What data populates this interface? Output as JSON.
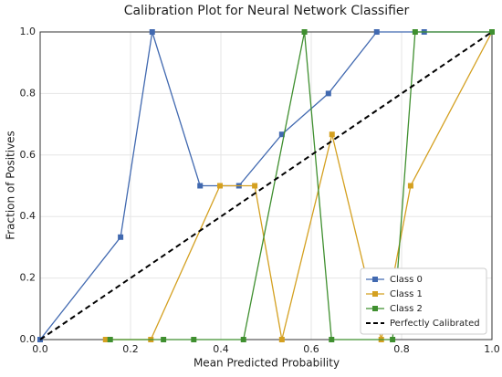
{
  "chart_data": {
    "type": "line",
    "title": "Calibration Plot for Neural Network Classifier",
    "xlabel": "Mean Predicted Probability",
    "ylabel": "Fraction of Positives",
    "xlim": [
      0,
      1
    ],
    "ylim": [
      0,
      1
    ],
    "xticks": [
      {
        "value": 0,
        "label": "0.0"
      },
      0.2,
      0.4,
      0.6,
      0.8,
      {
        "value": 1,
        "label": "1.0"
      }
    ],
    "yticks": [
      {
        "value": 0,
        "label": "0.0"
      },
      0.2,
      0.4,
      0.6,
      0.8,
      {
        "value": 1,
        "label": "1.0"
      }
    ],
    "grid": true,
    "legend": "lower right",
    "series": [
      {
        "name": "Class 0",
        "color": "#4169b0",
        "marker": "square",
        "x": [
          0,
          0.178,
          0.248,
          0.354,
          0.44,
          0.535,
          0.638,
          0.745,
          0.85,
          1.0
        ],
        "values": [
          0,
          0.333,
          1.0,
          0.5,
          0.5,
          0.667,
          0.8,
          1.0,
          1.0,
          1.0
        ]
      },
      {
        "name": "Class 1",
        "color": "#d4a020",
        "marker": "square",
        "x": [
          0.145,
          0.245,
          0.398,
          0.475,
          0.535,
          0.646,
          0.755,
          0.82,
          1.0
        ],
        "values": [
          0,
          0,
          0.5,
          0.5,
          0,
          0.667,
          0,
          0.5,
          1.0
        ]
      },
      {
        "name": "Class 2",
        "color": "#3f8f2f",
        "marker": "square",
        "x": [
          0.155,
          0.273,
          0.34,
          0.45,
          0.585,
          0.645,
          0.78,
          0.83,
          1.0
        ],
        "values": [
          0,
          0,
          0,
          0,
          1.0,
          0,
          0,
          1.0,
          1.0
        ]
      },
      {
        "name": "Perfectly Calibrated",
        "color": "#000000",
        "dashed": true,
        "x": [
          0,
          1
        ],
        "values": [
          0,
          1
        ]
      }
    ]
  }
}
